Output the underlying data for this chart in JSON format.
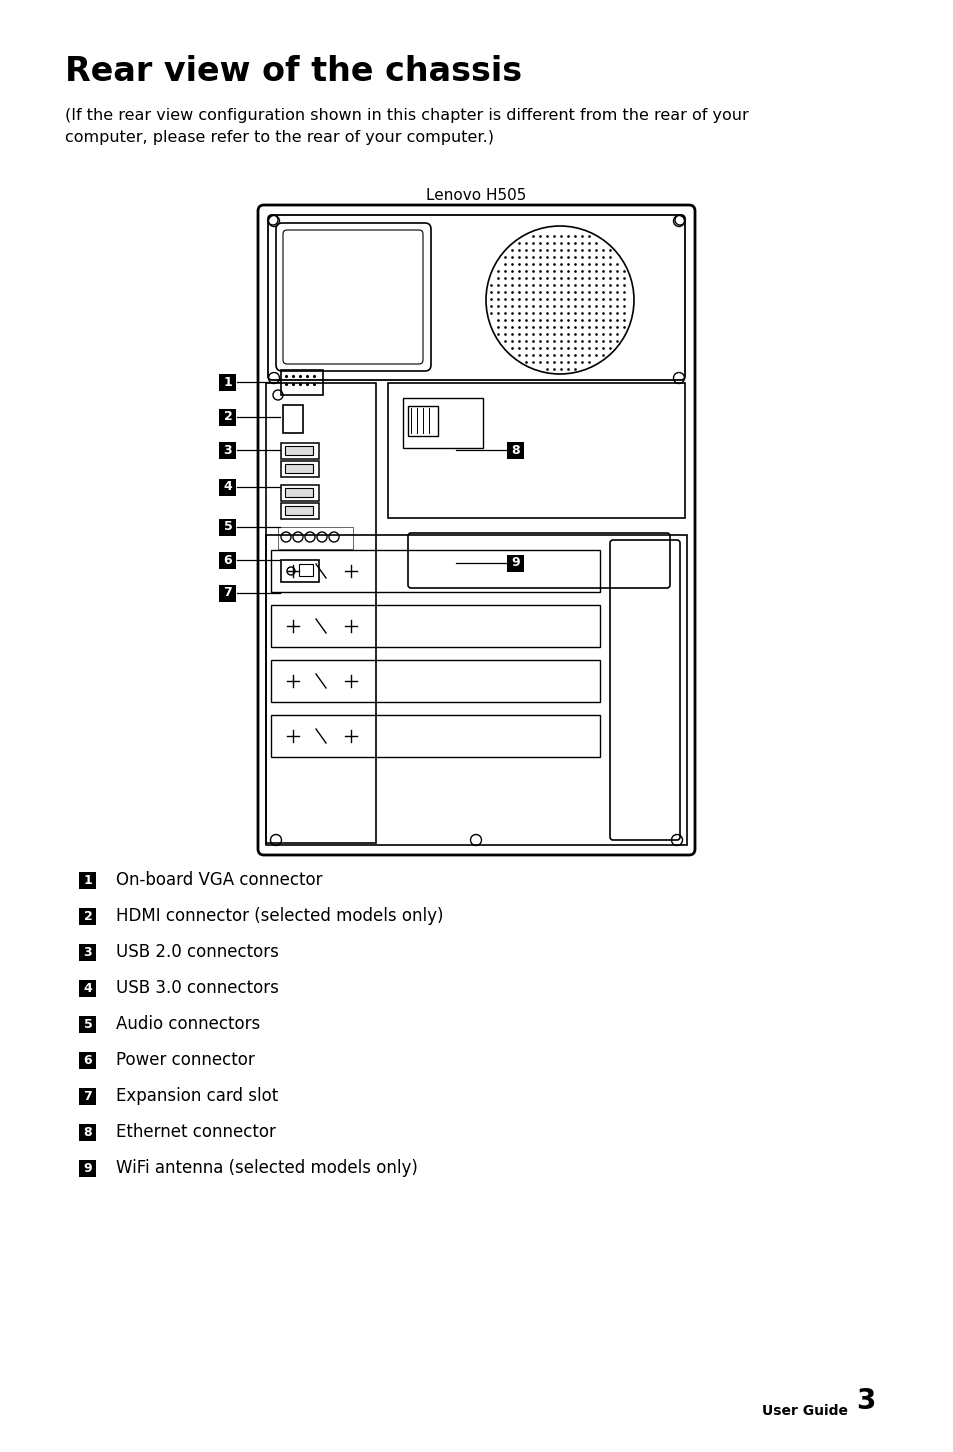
{
  "title": "Rear view of the chassis",
  "subtitle": "(If the rear view configuration shown in this chapter is different from the rear of your\ncomputer, please refer to the rear of your computer.)",
  "diagram_label": "Lenovo H505",
  "background_color": "#ffffff",
  "text_color": "#000000",
  "badge_color": "#000000",
  "badge_text_color": "#ffffff",
  "title_fontsize": 24,
  "subtitle_fontsize": 11.5,
  "label_fontsize": 12,
  "diagram_label_fontsize": 11,
  "footer_text": "User Guide",
  "footer_page": "3",
  "items": [
    {
      "num": "1",
      "text": "On-board VGA connector"
    },
    {
      "num": "2",
      "text": "HDMI connector (selected models only)"
    },
    {
      "num": "3",
      "text": "USB 2.0 connectors"
    },
    {
      "num": "4",
      "text": "USB 3.0 connectors"
    },
    {
      "num": "5",
      "text": "Audio connectors"
    },
    {
      "num": "6",
      "text": "Power connector"
    },
    {
      "num": "7",
      "text": "Expansion card slot"
    },
    {
      "num": "8",
      "text": "Ethernet connector"
    },
    {
      "num": "9",
      "text": "WiFi antenna (selected models only)"
    }
  ]
}
